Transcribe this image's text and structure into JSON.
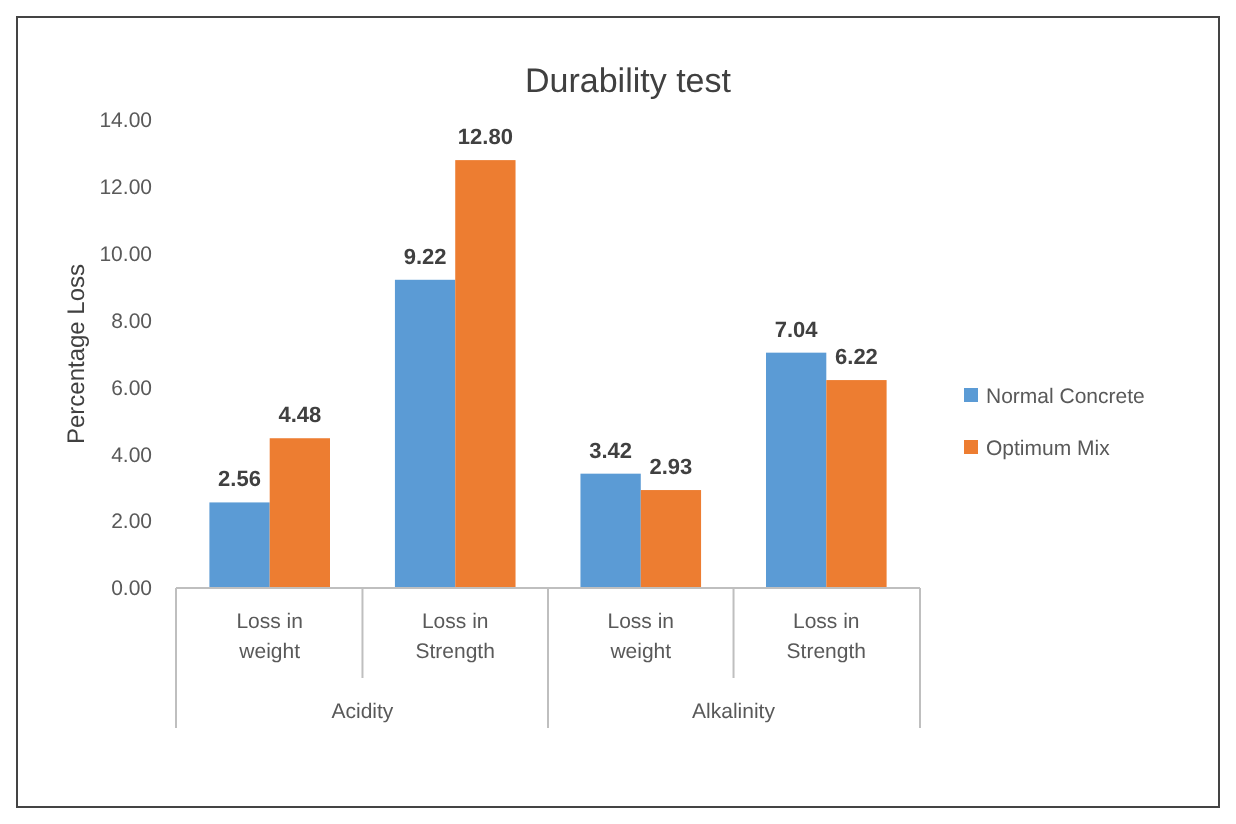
{
  "chart_data": {
    "type": "bar",
    "title": "Durability test",
    "ylabel": "Percentage Loss",
    "categories": [
      "Loss in weight",
      "Loss in Strength",
      "Loss in weight",
      "Loss in Strength"
    ],
    "series": [
      {
        "name": "Normal Concrete",
        "color": "#5b9bd5",
        "values": [
          2.56,
          9.22,
          3.42,
          7.04
        ],
        "value_labels": [
          "2.56",
          "9.22",
          "3.42",
          "7.04"
        ]
      },
      {
        "name": "Optimum Mix",
        "color": "#ed7d31",
        "values": [
          4.48,
          12.8,
          2.93,
          6.22
        ],
        "value_labels": [
          "4.48",
          "12.80",
          "2.93",
          "6.22"
        ]
      }
    ],
    "annotations": [
      "Acidity",
      "Alkalinity"
    ],
    "ylim": [
      0,
      14
    ],
    "yticks": [
      {
        "value": 0,
        "label": "0.00"
      },
      {
        "value": 2,
        "label": "2.00"
      },
      {
        "value": 4,
        "label": "4.00"
      },
      {
        "value": 6,
        "label": "6.00"
      },
      {
        "value": 8,
        "label": "8.00"
      },
      {
        "value": 10,
        "label": "10.00"
      },
      {
        "value": 12,
        "label": "12.00"
      },
      {
        "value": 14,
        "label": "14.00"
      }
    ],
    "grid": false,
    "legend": "right"
  }
}
